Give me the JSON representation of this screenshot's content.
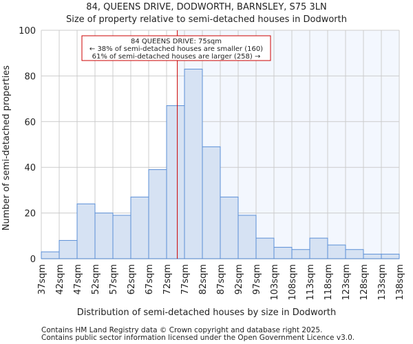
{
  "chart_data": {
    "type": "bar",
    "title": "84, QUEENS DRIVE, DODWORTH, BARNSLEY, S75 3LN",
    "subtitle": "Size of property relative to semi-detached houses in Dodworth",
    "xlabel": "Distribution of semi-detached houses by size in Dodworth",
    "ylabel": "Number of semi-detached properties",
    "ylim": [
      0,
      100
    ],
    "yticks": [
      0,
      20,
      40,
      60,
      80,
      100
    ],
    "tick_labels": [
      "37sqm",
      "42sqm",
      "47sqm",
      "52sqm",
      "57sqm",
      "62sqm",
      "67sqm",
      "72sqm",
      "77sqm",
      "82sqm",
      "87sqm",
      "92sqm",
      "97sqm",
      "103sqm",
      "108sqm",
      "113sqm",
      "118sqm",
      "123sqm",
      "128sqm",
      "133sqm",
      "138sqm"
    ],
    "values": [
      3,
      8,
      24,
      20,
      19,
      27,
      39,
      67,
      83,
      49,
      27,
      19,
      9,
      5,
      4,
      9,
      6,
      4,
      2,
      2
    ],
    "marker_bin_position": 7.6,
    "annotation": {
      "line1": "84 QUEENS DRIVE: 75sqm",
      "line2": "← 38% of semi-detached houses are smaller (160)",
      "line3": "61% of semi-detached houses are larger (258) →"
    },
    "grid": true,
    "colors": {
      "bar_fill": "#d6e2f3",
      "bar_edge": "#5b8fd6",
      "marker": "#cc0000",
      "shade": "#f3f7fe",
      "grid": "#cccccc"
    }
  },
  "footer": {
    "line1": "Contains HM Land Registry data © Crown copyright and database right 2025.",
    "line2": "Contains public sector information licensed under the Open Government Licence v3.0."
  }
}
